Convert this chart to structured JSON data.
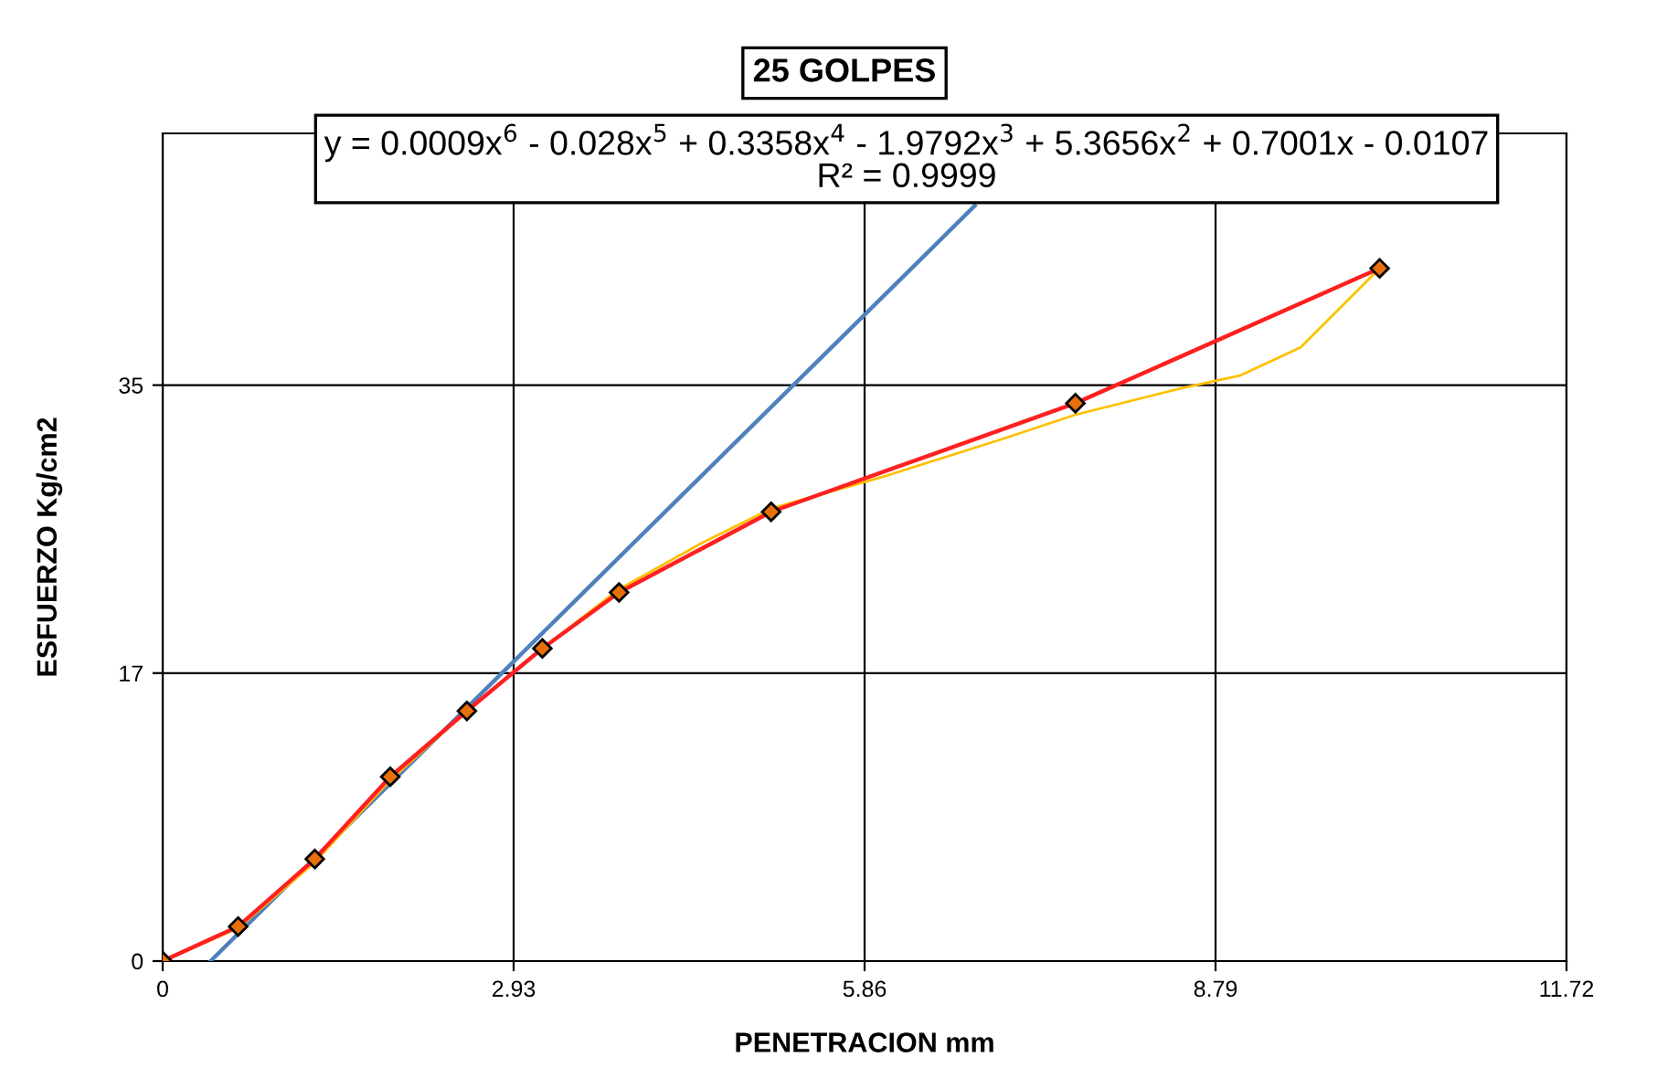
{
  "chart_data": {
    "type": "line",
    "title": "25 GOLPES",
    "xlabel": "PENETRACION mm",
    "ylabel": "ESFUERZO Kg/cm2",
    "xlim": [
      0,
      11.72
    ],
    "xticks": [
      0,
      2.93,
      5.86,
      8.79,
      11.72
    ],
    "ylim": [
      0,
      50.3
    ],
    "yticks": [
      0,
      {
        "value": 17.5,
        "label": "17"
      },
      35
    ],
    "grid": true,
    "legend": false,
    "annotations": [
      "y = 0.0009x$^{6}$ - 0.028x$^{5}$ + 0.3358x$^{4}$ - 1.9792x$^{3}$ + 5.3656x$^{2}$ + 0.7001x - 0.0107\nR² = 0.9999"
    ],
    "series": [
      {
        "color": "#4f81bd",
        "marker": "none",
        "x": [
          0.4,
          6.78
        ],
        "values": [
          0,
          45.9
        ]
      },
      {
        "color": "#ffc000",
        "marker": "none",
        "x": [
          0,
          0.63,
          1.27,
          1.9,
          2.54,
          3.17,
          3.81,
          4.5,
          5.08,
          6,
          7,
          7.62,
          8.5,
          9,
          9.5,
          10.16
        ],
        "values": [
          0,
          2.0,
          6.0,
          11.0,
          15.2,
          19.0,
          22.6,
          25.4,
          27.5,
          29.4,
          31.7,
          33.2,
          34.8,
          35.6,
          37.3,
          42.1
        ]
      },
      {
        "color": "#ff2020",
        "marker": "diamond",
        "x": [
          0,
          0.63,
          1.27,
          1.9,
          2.54,
          3.17,
          3.81,
          5.08,
          7.62,
          10.16
        ],
        "values": [
          0,
          2.1,
          6.2,
          11.2,
          15.2,
          19.0,
          22.4,
          27.3,
          33.9,
          42.1
        ]
      }
    ]
  }
}
